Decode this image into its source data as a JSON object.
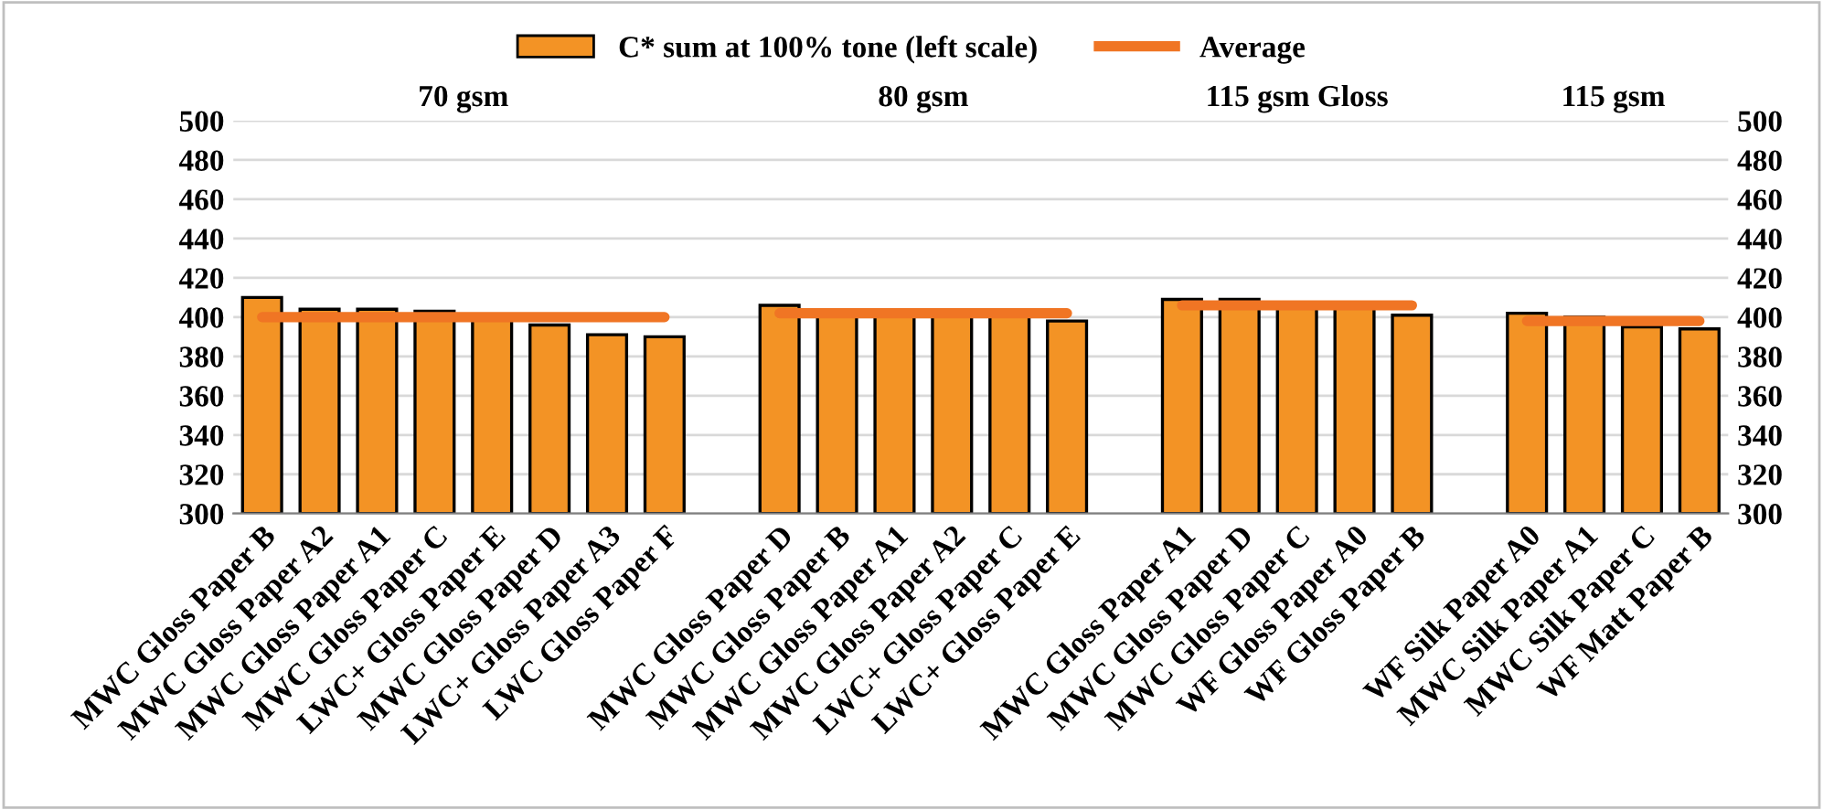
{
  "chart_data": {
    "type": "bar",
    "categories": [
      "MWC Gloss Paper B",
      "MWC Gloss Paper A2",
      "MWC Gloss Paper A1",
      "MWC Gloss Paper C",
      "LWC+ Gloss Paper E",
      "MWC Gloss Paper D",
      "LWC+ Gloss Paper A3",
      "LWC Gloss Paper F",
      null,
      "MWC Gloss Paper D",
      "MWC Gloss Paper B",
      "MWC Gloss Paper A1",
      "MWC Gloss Paper A2",
      "LWC+ Gloss Paper C",
      "LWC+ Gloss Paper E",
      null,
      "MWC Gloss Paper A1",
      "MWC Gloss Paper D",
      "MWC Gloss Paper C",
      "WF Gloss Paper A0",
      "WF Gloss Paper B",
      null,
      "WF Silk Paper A0",
      "MWC Silk Paper A1",
      "MWC Silk Paper C",
      "WF Matt Paper B"
    ],
    "series": [
      {
        "name": "C* sum at 100% tone (left scale)",
        "color": "#f39325",
        "values": [
          410,
          404,
          404,
          403,
          400,
          396,
          391,
          390,
          null,
          406,
          402,
          402,
          402,
          402,
          398,
          null,
          409,
          409,
          406,
          406,
          401,
          null,
          402,
          400,
          395,
          394
        ]
      },
      {
        "name": "Average",
        "type": "line",
        "color": "#f07524",
        "values": [
          400,
          400,
          400,
          400,
          400,
          400,
          400,
          400,
          null,
          402,
          402,
          402,
          402,
          402,
          402,
          null,
          406,
          406,
          406,
          406,
          406,
          null,
          398,
          398,
          398,
          398
        ]
      }
    ],
    "annotations": [
      "70 gsm",
      "80 gsm",
      "115 gsm Gloss",
      "115 gsm"
    ],
    "ylim": [
      300,
      500
    ],
    "yticks": [
      300,
      320,
      340,
      360,
      380,
      400,
      420,
      440,
      460,
      480,
      500
    ],
    "y2lim": [
      300,
      500
    ],
    "y2ticks": [
      300,
      320,
      340,
      360,
      380,
      400,
      420,
      440,
      460,
      480,
      500
    ],
    "grid": "y",
    "legend": "top"
  }
}
